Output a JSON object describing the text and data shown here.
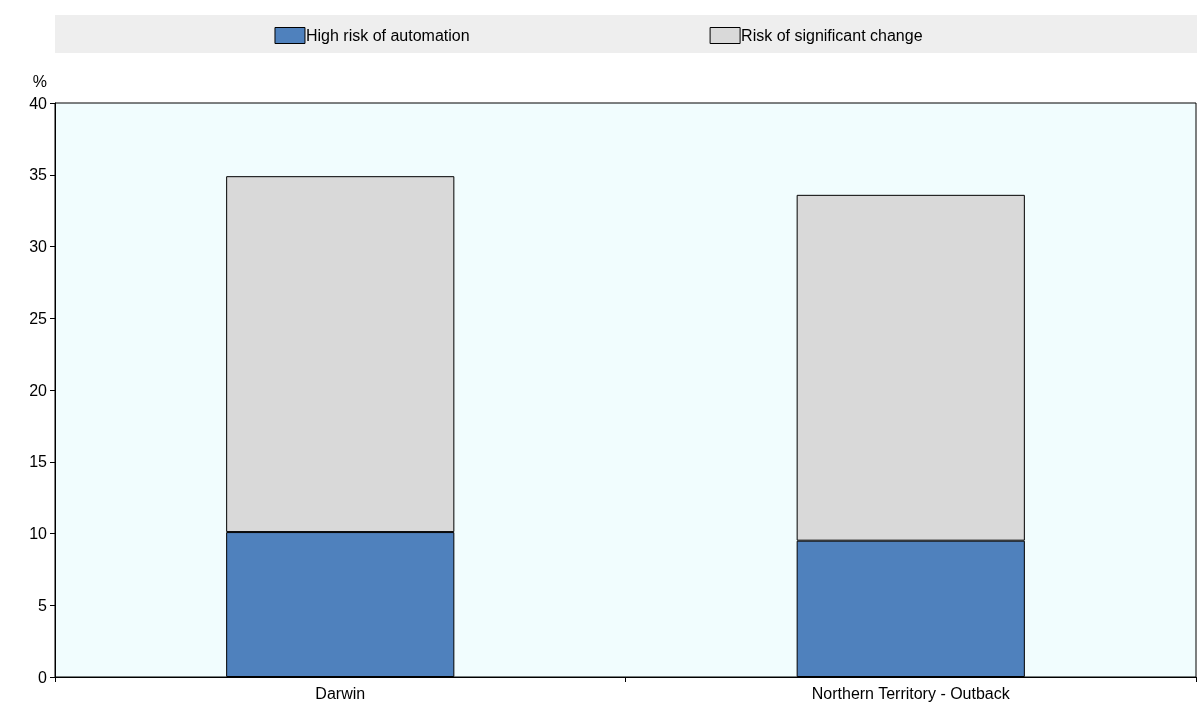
{
  "chart_data": {
    "type": "bar",
    "stacked": true,
    "categories": [
      "Darwin",
      "Northern Territory - Outback"
    ],
    "ylabel": "%",
    "series": [
      {
        "name": "High risk of automation",
        "color": "#4f81bd",
        "values": [
          10.1,
          9.5
        ]
      },
      {
        "name": "Risk of significant change",
        "color": "#d9d9d9",
        "values": [
          24.8,
          24.1
        ]
      }
    ],
    "ylim": [
      0,
      40
    ],
    "yticks": [
      0,
      5,
      10,
      15,
      20,
      25,
      30,
      35,
      40
    ],
    "grid": false,
    "legend": "top"
  }
}
